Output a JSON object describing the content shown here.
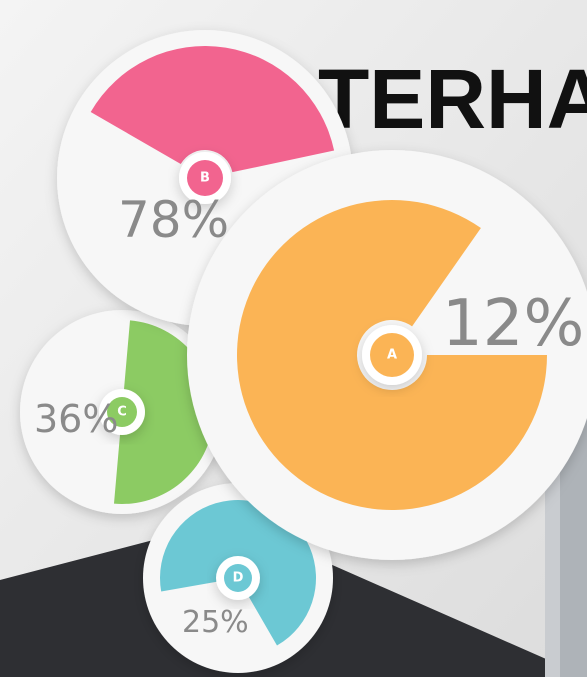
{
  "title": "TERHA",
  "segments": [
    {
      "badge": "B",
      "percent": "78%"
    },
    {
      "badge": "A",
      "percent": "12%"
    },
    {
      "badge": "C",
      "percent": "36%"
    },
    {
      "badge": "D",
      "percent": "25%"
    }
  ]
}
